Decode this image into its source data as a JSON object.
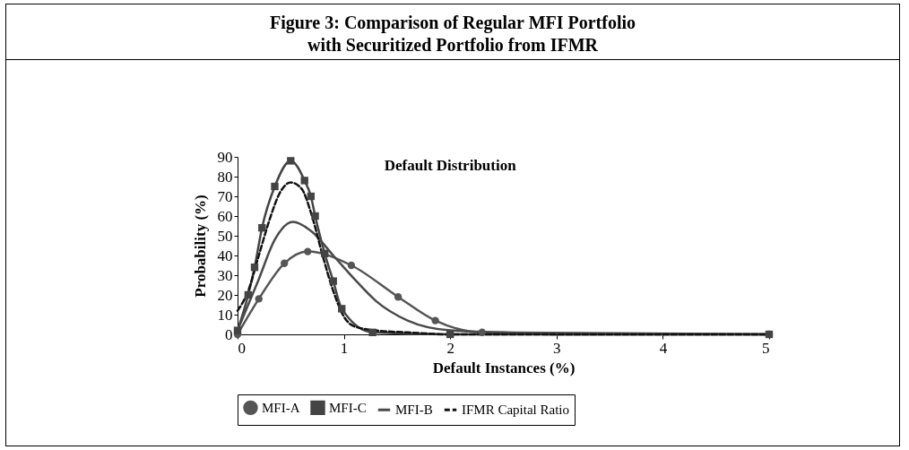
{
  "chart_data": {
    "type": "line",
    "title": "Figure 3: Comparison of Regular MFI Portfolio\nwith Securitized Portfolio from IFMR",
    "subtitle": "Default Distribution",
    "xlabel": "Default Instances (%)",
    "ylabel": "Probability (%)",
    "xlim": [
      0,
      5
    ],
    "xticks": [
      0,
      1,
      2,
      3,
      4,
      5
    ],
    "ylim": [
      0,
      90
    ],
    "yticks": [
      0,
      10,
      20,
      30,
      40,
      50,
      60,
      70,
      80,
      90
    ],
    "grid": false,
    "legend": "bottom",
    "series": [
      {
        "name": "MFI-A",
        "color": "#555555",
        "marker": "circle",
        "line_style": "solid",
        "x": [
          0,
          0.2,
          0.44,
          0.66,
          1.07,
          1.51,
          1.86,
          2.3,
          5
        ],
        "values": [
          0,
          18,
          36,
          42,
          35,
          19,
          7,
          1,
          0
        ]
      },
      {
        "name": "MFI-C",
        "color": "#444444",
        "marker": "square",
        "line_style": "solid",
        "x": [
          0,
          0.1,
          0.16,
          0.23,
          0.35,
          0.5,
          0.63,
          0.69,
          0.73,
          0.82,
          0.9,
          0.98,
          1.27,
          2,
          5
        ],
        "values": [
          2,
          20,
          34,
          54,
          75,
          88,
          78,
          70,
          60,
          41,
          27,
          13,
          1,
          0,
          0
        ]
      },
      {
        "name": "MFI-B",
        "color": "#4a4a4a",
        "marker": "none",
        "line_style": "solid",
        "x": [
          0,
          0.2,
          0.35,
          0.52,
          0.7,
          0.9,
          1.1,
          1.3,
          1.6,
          2,
          2.5,
          3,
          5
        ],
        "values": [
          2,
          28,
          48,
          57,
          52,
          40,
          28,
          17,
          7,
          2,
          1,
          0,
          0
        ]
      },
      {
        "name": "IFMR Capital Ratio",
        "color": "#111111",
        "marker": "none",
        "line_style": "dashed",
        "x": [
          0,
          0.1,
          0.2,
          0.3,
          0.4,
          0.5,
          0.6,
          0.7,
          0.8,
          0.9,
          1.0,
          1.1,
          1.3,
          1.6,
          2.0,
          3,
          5
        ],
        "values": [
          12,
          22,
          40,
          58,
          72,
          77,
          74,
          60,
          40,
          22,
          9,
          4,
          2,
          1,
          0,
          0,
          0
        ]
      }
    ]
  }
}
